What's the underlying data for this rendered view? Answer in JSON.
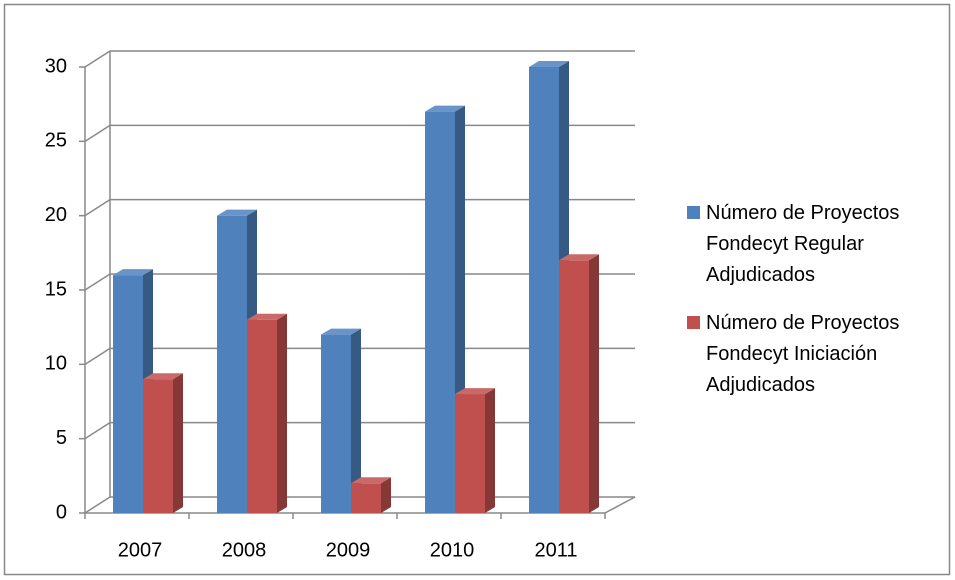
{
  "chart_data": {
    "type": "bar3d",
    "categories": [
      "2007",
      "2008",
      "2009",
      "2010",
      "2011"
    ],
    "series": [
      {
        "name": "Número de Proyectos Fondecyt Regular Adjudicados",
        "color": "#4f81bd",
        "values": [
          16,
          20,
          12,
          27,
          30
        ]
      },
      {
        "name": "Número de Proyectos Fondecyt Iniciación Adjudicados",
        "color": "#c0504d",
        "values": [
          9,
          13,
          2,
          8,
          17
        ]
      }
    ],
    "ylim": [
      0,
      30
    ],
    "yticks": [
      0,
      5,
      10,
      15,
      20,
      25,
      30
    ],
    "grid": true,
    "legend": "right"
  }
}
